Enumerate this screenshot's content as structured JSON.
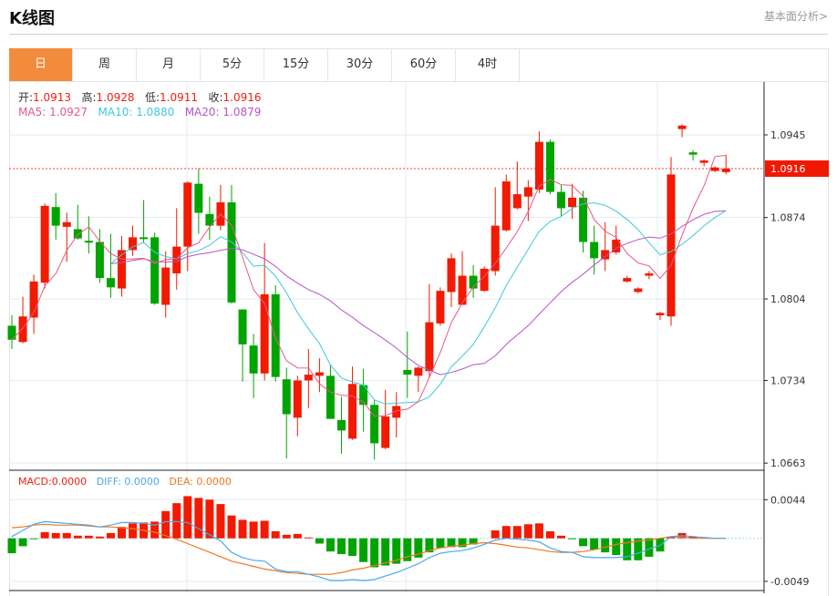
{
  "header": {
    "title": "K线图",
    "link": "基本面分析>"
  },
  "tabs": [
    {
      "label": "日",
      "active": true
    },
    {
      "label": "周"
    },
    {
      "label": "月"
    },
    {
      "label": "5分"
    },
    {
      "label": "15分"
    },
    {
      "label": "30分"
    },
    {
      "label": "60分"
    },
    {
      "label": "4时"
    }
  ],
  "ohlc_info": {
    "open_label": "开:",
    "open": "1.0913",
    "high_label": "高:",
    "high": "1.0928",
    "low_label": "低:",
    "low": "1.0911",
    "close_label": "收:",
    "close": "1.0916"
  },
  "ma_info": {
    "ma5_label": "MA5:",
    "ma5": "1.0927",
    "ma10_label": "MA10:",
    "ma10": "1.0880",
    "ma20_label": "MA20:",
    "ma20": "1.0879"
  },
  "macd_info": {
    "macd_label": "MACD:",
    "macd": "0.0000",
    "diff_label": "DIFF:",
    "diff": "0.0000",
    "dea_label": "DEA:",
    "dea": "0.0000"
  },
  "colors": {
    "up": "#f21a00",
    "down": "#00a400",
    "ma5": "#e8578a",
    "ma10": "#3ec9dc",
    "ma20": "#b455c8",
    "diff": "#4aa8f0",
    "dea": "#f07820",
    "active_tab": "#f28c3c"
  },
  "chart_data": {
    "type": "candlestick",
    "price_axis": {
      "ticks": [
        "1.0945",
        "1.0874",
        "1.0804",
        "1.0734",
        "1.0663"
      ],
      "current_price": "1.0916"
    },
    "macd_axis": {
      "ticks": [
        "0.0044",
        "-0.0049"
      ]
    },
    "candles": [
      [
        1.0781,
        1.079,
        1.0761,
        1.0769
      ],
      [
        1.0767,
        1.0806,
        1.0766,
        1.0789
      ],
      [
        1.0788,
        1.0825,
        1.0774,
        1.0819
      ],
      [
        1.0818,
        1.0886,
        1.0813,
        1.0884
      ],
      [
        1.0883,
        1.0895,
        1.0855,
        1.0867
      ],
      [
        1.0866,
        1.0878,
        1.0836,
        1.087
      ],
      [
        1.0864,
        1.0885,
        1.0855,
        1.0856
      ],
      [
        1.0854,
        1.0875,
        1.0843,
        1.0853
      ],
      [
        1.0853,
        1.0864,
        1.0818,
        1.0822
      ],
      [
        1.0822,
        1.086,
        1.0805,
        1.0814
      ],
      [
        1.0813,
        1.0858,
        1.0806,
        1.0846
      ],
      [
        1.0846,
        1.0867,
        1.0841,
        1.0857
      ],
      [
        1.0857,
        1.0889,
        1.0852,
        1.0856
      ],
      [
        1.0857,
        1.0861,
        1.0799,
        1.08
      ],
      [
        1.0799,
        1.0845,
        1.0788,
        1.0831
      ],
      [
        1.0826,
        1.0882,
        1.0812,
        1.0849
      ],
      [
        1.0849,
        1.0905,
        1.0828,
        1.0904
      ],
      [
        1.0903,
        1.0916,
        1.086,
        1.0878
      ],
      [
        1.0877,
        1.0892,
        1.0855,
        1.0867
      ],
      [
        1.0867,
        1.0902,
        1.0863,
        1.0887
      ],
      [
        1.0887,
        1.0902,
        1.08,
        1.0801
      ],
      [
        1.0795,
        1.0795,
        1.0733,
        1.0765
      ],
      [
        1.0764,
        1.0774,
        1.0719,
        1.074
      ],
      [
        1.074,
        1.0852,
        1.0734,
        1.0808
      ],
      [
        1.0808,
        1.0816,
        1.0733,
        1.0737
      ],
      [
        1.0735,
        1.0745,
        1.0667,
        1.0705
      ],
      [
        1.0702,
        1.0738,
        1.0686,
        1.0734
      ],
      [
        1.0734,
        1.0761,
        1.071,
        1.0739
      ],
      [
        1.0738,
        1.0753,
        1.0724,
        1.0741
      ],
      [
        1.0738,
        1.0748,
        1.0701,
        1.0701
      ],
      [
        1.07,
        1.072,
        1.0671,
        1.0691
      ],
      [
        1.0684,
        1.0746,
        1.0683,
        1.0731
      ],
      [
        1.073,
        1.0744,
        1.069,
        1.0713
      ],
      [
        1.0713,
        1.0717,
        1.0666,
        1.068
      ],
      [
        1.0676,
        1.0726,
        1.0675,
        1.0703
      ],
      [
        1.0702,
        1.0724,
        1.0685,
        1.0712
      ],
      [
        1.0743,
        1.0776,
        1.0719,
        1.0739
      ],
      [
        1.0738,
        1.0746,
        1.0724,
        1.0745
      ],
      [
        1.0742,
        1.0817,
        1.0736,
        1.0784
      ],
      [
        1.0783,
        1.0814,
        1.0781,
        1.0811
      ],
      [
        1.081,
        1.0843,
        1.0797,
        1.0839
      ],
      [
        1.0799,
        1.0845,
        1.0799,
        1.0824
      ],
      [
        1.0824,
        1.0833,
        1.0805,
        1.0813
      ],
      [
        1.0811,
        1.0832,
        1.081,
        1.083
      ],
      [
        1.0828,
        1.09,
        1.0824,
        1.0867
      ],
      [
        1.0863,
        1.0911,
        1.0862,
        1.0905
      ],
      [
        1.0882,
        1.0922,
        1.0881,
        1.0894
      ],
      [
        1.0892,
        1.0906,
        1.0871,
        1.09
      ],
      [
        1.0898,
        1.0948,
        1.0895,
        1.0939
      ],
      [
        1.0939,
        1.0941,
        1.0894,
        1.0896
      ],
      [
        1.0896,
        1.0902,
        1.0875,
        1.0882
      ],
      [
        1.0883,
        1.0903,
        1.0873,
        1.0891
      ],
      [
        1.0891,
        1.0897,
        1.0844,
        1.0853
      ],
      [
        1.0853,
        1.0867,
        1.0825,
        1.0839
      ],
      [
        1.0838,
        1.087,
        1.0828,
        1.0846
      ],
      [
        1.0844,
        1.0867,
        1.0842,
        1.0855
      ],
      [
        1.0819,
        1.0824,
        1.0818,
        1.0822
      ],
      [
        1.081,
        1.0814,
        1.0809,
        1.0813
      ],
      [
        1.0824,
        1.0828,
        1.0821,
        1.0826
      ],
      [
        1.079,
        1.0793,
        1.0786,
        1.0792
      ],
      [
        1.0789,
        1.0926,
        1.0781,
        1.0911
      ],
      [
        1.095,
        1.0954,
        1.0943,
        1.0953
      ],
      [
        1.093,
        1.0932,
        1.0923,
        1.0928
      ],
      [
        1.0921,
        1.0924,
        1.0918,
        1.0923
      ],
      [
        1.0914,
        1.0918,
        1.0913,
        1.0917
      ],
      [
        1.0913,
        1.0928,
        1.0911,
        1.0916
      ]
    ],
    "macd_hist": [
      -0.0017,
      -0.0009,
      -0.0001,
      0.0007,
      0.0006,
      0.0006,
      0.0003,
      0.0003,
      0.0002,
      0.0006,
      0.0013,
      0.0017,
      0.0018,
      0.0019,
      0.0031,
      0.004,
      0.0048,
      0.0046,
      0.0044,
      0.0039,
      0.0026,
      0.0021,
      0.0019,
      0.002,
      0.0008,
      0.0004,
      0.0005,
      0.0001,
      -0.0006,
      -0.0015,
      -0.0018,
      -0.002,
      -0.0027,
      -0.0033,
      -0.0031,
      -0.0029,
      -0.0026,
      -0.0022,
      -0.0016,
      -0.0011,
      -0.001,
      -0.001,
      -0.0007,
      0.0,
      0.0009,
      0.0014,
      0.0014,
      0.0016,
      0.0017,
      0.0008,
      0.0003,
      -0.0001,
      -0.0009,
      -0.0013,
      -0.0016,
      -0.0019,
      -0.0025,
      -0.0025,
      -0.0021,
      -0.0015,
      0.0002,
      0.0006,
      0.0002,
      0.0,
      0.0,
      0.0
    ],
    "diff": [
      0.0002,
      0.0009,
      0.0016,
      0.0019,
      0.0018,
      0.0017,
      0.0016,
      0.0015,
      0.0013,
      0.0015,
      0.0018,
      0.0018,
      0.0017,
      0.0015,
      0.0019,
      0.0019,
      0.0018,
      0.0011,
      0.0004,
      -0.0003,
      -0.0016,
      -0.0022,
      -0.0025,
      -0.0026,
      -0.0035,
      -0.0038,
      -0.0038,
      -0.0041,
      -0.0044,
      -0.0048,
      -0.0048,
      -0.0047,
      -0.0048,
      -0.0047,
      -0.0043,
      -0.0039,
      -0.0034,
      -0.0029,
      -0.0022,
      -0.0017,
      -0.0015,
      -0.0014,
      -0.0011,
      -0.0007,
      -0.0002,
      0.0,
      -0.0001,
      -0.0002,
      -0.0004,
      -0.0011,
      -0.0015,
      -0.0016,
      -0.0021,
      -0.0022,
      -0.0022,
      -0.0022,
      -0.0021,
      -0.0017,
      -0.0012,
      -0.0008,
      0.0002,
      0.0003,
      0.0002,
      0.0001,
      0.0,
      0.0
    ],
    "dea": [
      0.0012,
      0.0013,
      0.0015,
      0.0016,
      0.0015,
      0.0015,
      0.0015,
      0.0014,
      0.0013,
      0.0013,
      0.0012,
      0.0011,
      0.0009,
      0.0007,
      0.0003,
      -0.0001,
      -0.0006,
      -0.0011,
      -0.0016,
      -0.0021,
      -0.0026,
      -0.0029,
      -0.0032,
      -0.0035,
      -0.0037,
      -0.0039,
      -0.004,
      -0.0041,
      -0.0041,
      -0.0041,
      -0.0039,
      -0.0036,
      -0.0034,
      -0.0031,
      -0.0028,
      -0.0025,
      -0.0021,
      -0.0018,
      -0.0014,
      -0.0011,
      -0.0009,
      -0.0008,
      -0.0006,
      -0.0005,
      -0.0006,
      -0.0008,
      -0.001,
      -0.0011,
      -0.0013,
      -0.0015,
      -0.0016,
      -0.0016,
      -0.0015,
      -0.0013,
      -0.001,
      -0.0007,
      -0.0005,
      -0.0003,
      -0.0002,
      0.0,
      0.0002,
      0.0001,
      0.0,
      0.0,
      0.0,
      0.0
    ]
  }
}
